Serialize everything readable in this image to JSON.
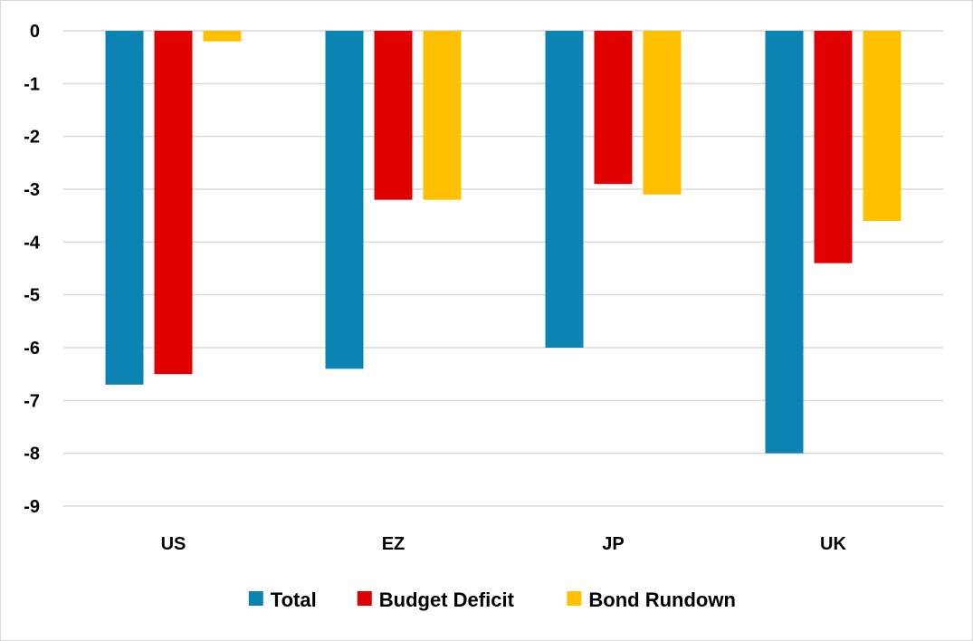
{
  "chart_data": {
    "type": "bar",
    "title": "",
    "xlabel": "",
    "ylabel": "",
    "categories": [
      "US",
      "EZ",
      "JP",
      "UK"
    ],
    "series": [
      {
        "name": "Total",
        "color": "#0b84b3",
        "values": [
          -6.7,
          -6.4,
          -6.0,
          -8.0
        ]
      },
      {
        "name": "Budget Deficit",
        "color": "#e00000",
        "values": [
          -6.5,
          -3.2,
          -2.9,
          -4.4
        ]
      },
      {
        "name": "Bond Rundown",
        "color": "#ffc000",
        "values": [
          -0.2,
          -3.2,
          -3.1,
          -3.6
        ]
      }
    ],
    "ylim": [
      -9,
      0
    ],
    "yticks": [
      0,
      -1,
      -2,
      -3,
      -4,
      -5,
      -6,
      -7,
      -8,
      -9
    ],
    "grid": true,
    "legend_position": "bottom"
  }
}
